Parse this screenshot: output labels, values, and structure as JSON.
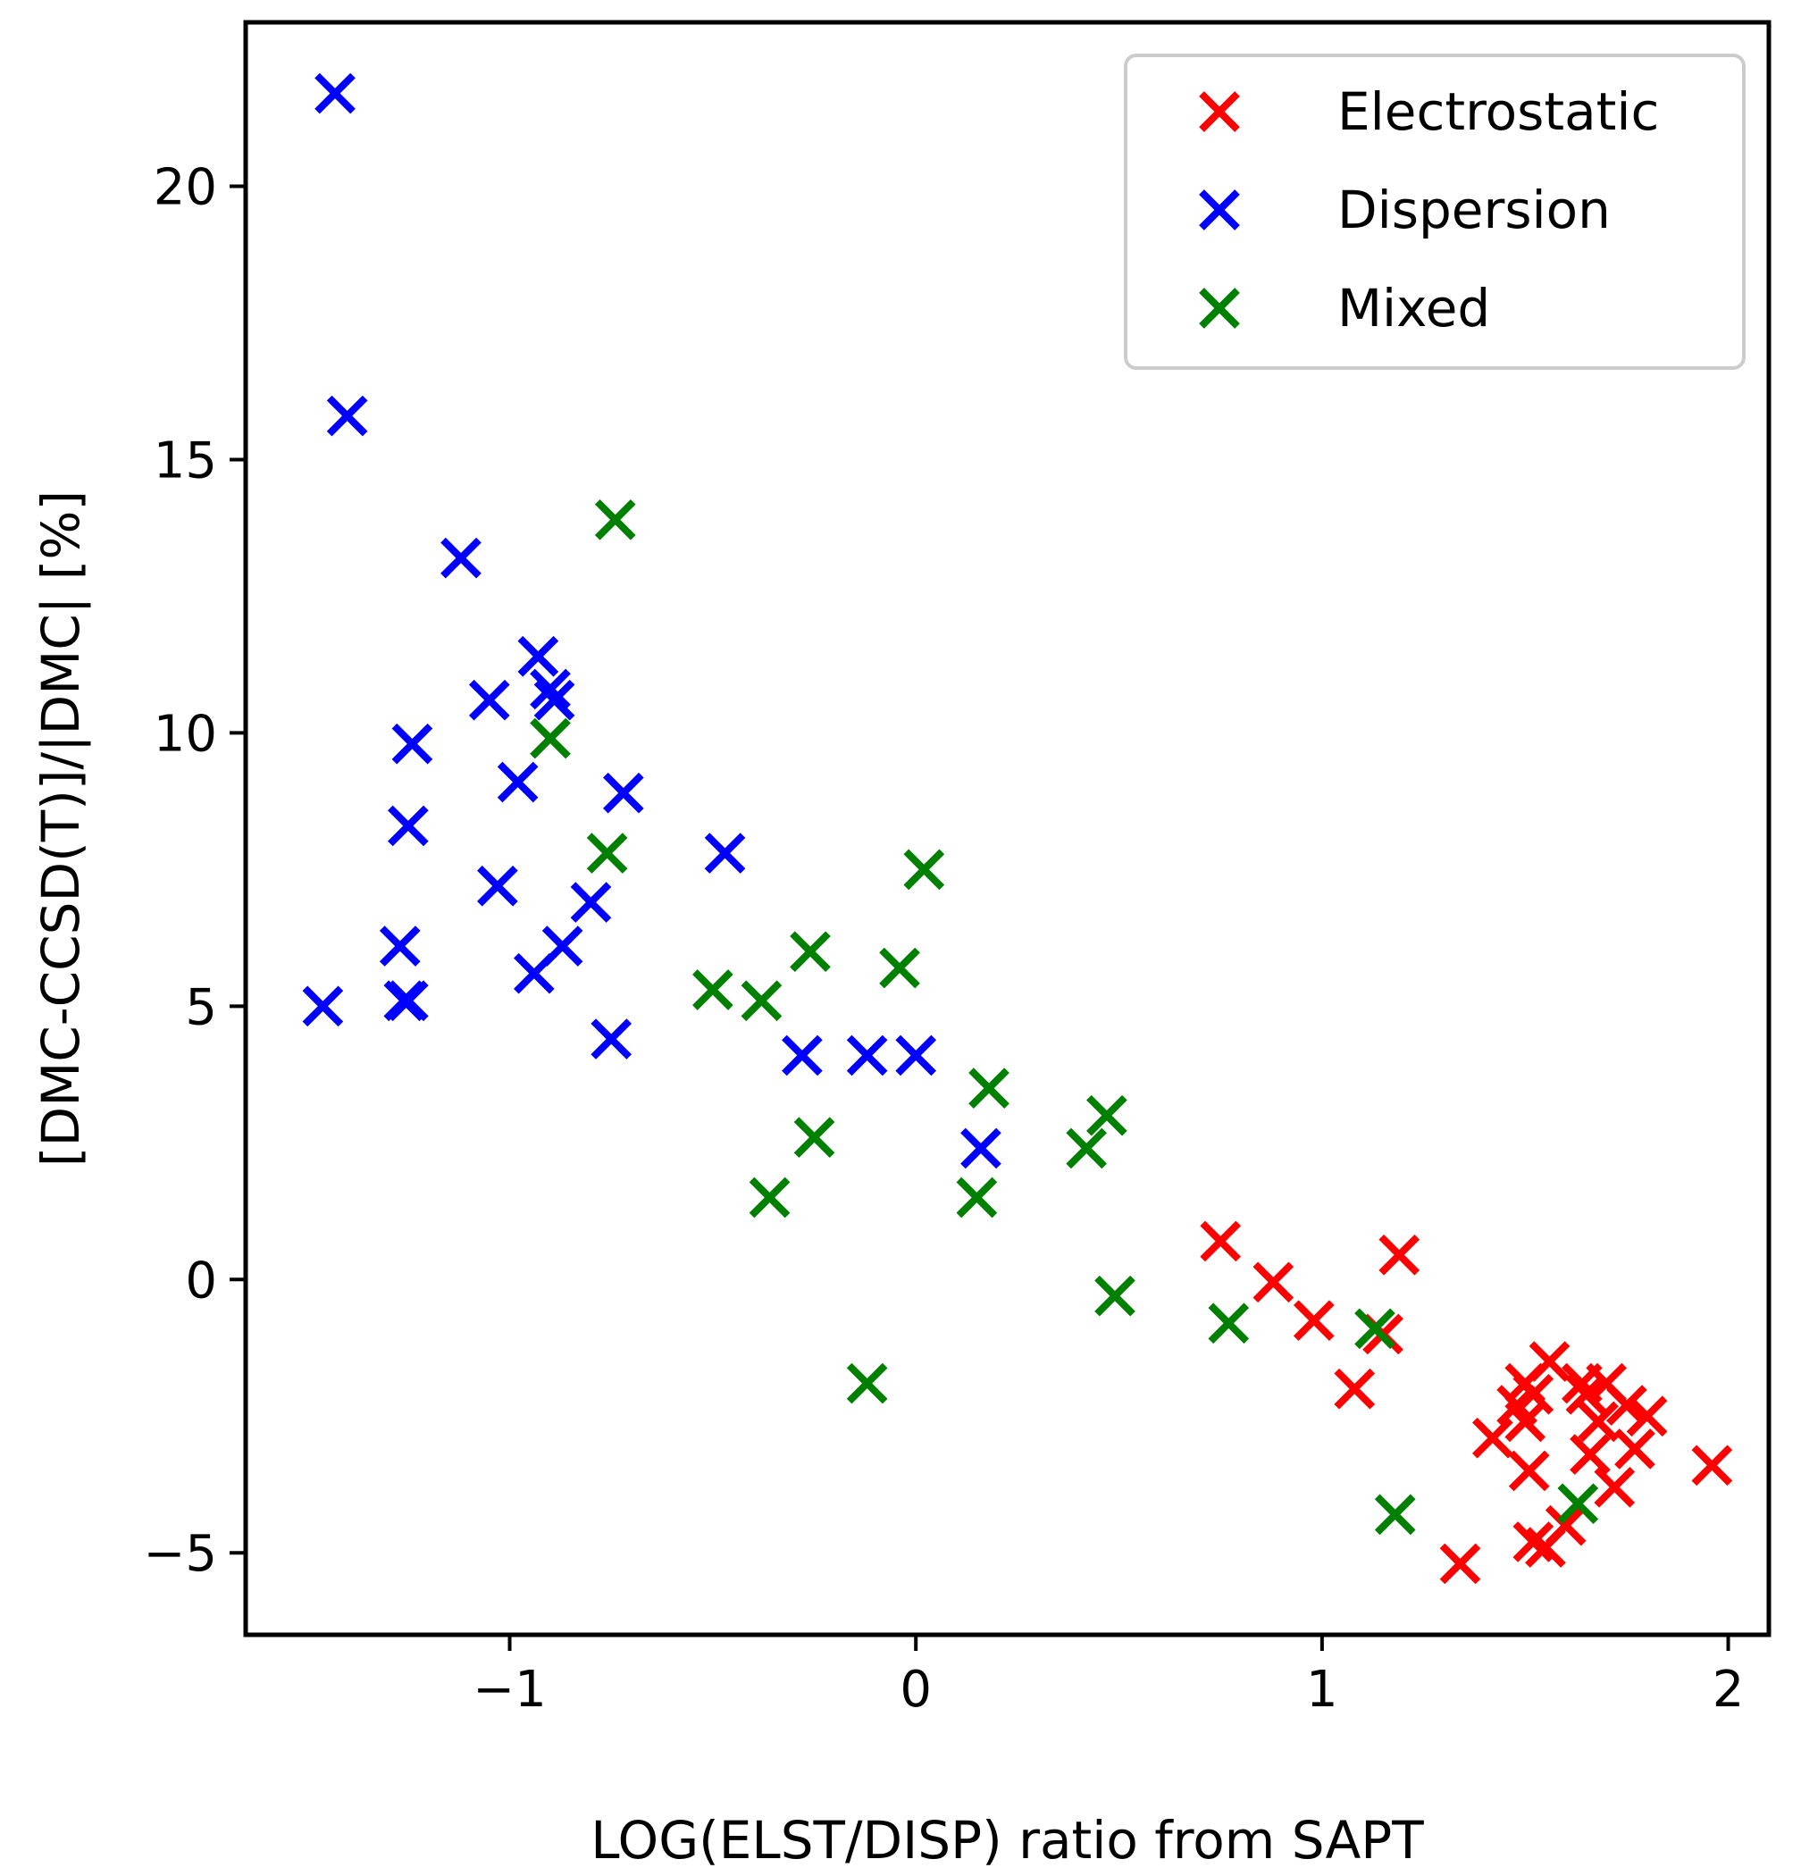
{
  "chart_data": {
    "type": "scatter",
    "title": "",
    "xlabel": "LOG(ELST/DISP) ratio from SAPT",
    "ylabel": "[DMC-CCSD(T)]/|DMC| [%]",
    "xlim": [
      -1.65,
      2.1
    ],
    "ylim": [
      -6.5,
      23.0
    ],
    "xticks": [
      -1,
      0,
      1,
      2
    ],
    "xtick_labels": [
      "−1",
      "0",
      "1",
      "2"
    ],
    "yticks": [
      -5,
      0,
      5,
      10,
      15,
      20
    ],
    "ytick_labels": [
      "−5",
      "0",
      "5",
      "10",
      "15",
      "20"
    ],
    "grid": false,
    "legend_position": "top-right",
    "marker": "x",
    "series": [
      {
        "name": "Electrostatic",
        "color": "#ff0000",
        "x": [
          0.75,
          0.88,
          0.98,
          1.08,
          1.15,
          1.19,
          1.34,
          1.42,
          1.48,
          1.5,
          1.51,
          1.52,
          1.55,
          1.56,
          1.6,
          1.64,
          1.65,
          1.66,
          1.68,
          1.7,
          1.72,
          1.75,
          1.77,
          1.8,
          1.96,
          1.5,
          1.52
        ],
        "y": [
          0.7,
          -0.05,
          -0.75,
          -2.0,
          -1.0,
          0.45,
          -5.2,
          -2.9,
          -2.3,
          -1.9,
          -3.5,
          -2.1,
          -4.9,
          -1.5,
          -4.5,
          -1.9,
          -2.1,
          -3.2,
          -2.6,
          -1.9,
          -3.8,
          -2.3,
          -3.1,
          -2.5,
          -3.4,
          -2.6,
          -4.8
        ]
      },
      {
        "name": "Dispersion",
        "color": "#0000ff",
        "x": [
          -1.43,
          -1.4,
          -1.46,
          -1.12,
          -1.24,
          -1.05,
          -0.93,
          -0.9,
          -1.25,
          -0.98,
          -1.25,
          -0.72,
          -1.03,
          -0.47,
          -0.8,
          -0.87,
          -0.94,
          -1.27,
          -1.26,
          -0.75,
          -0.28,
          -0.12,
          0.0,
          0.16,
          -0.89
        ],
        "y": [
          21.7,
          15.8,
          5.0,
          13.2,
          9.8,
          10.6,
          11.4,
          10.8,
          8.3,
          9.1,
          5.1,
          8.9,
          7.2,
          7.8,
          6.9,
          6.1,
          5.6,
          6.1,
          5.1,
          4.4,
          4.1,
          4.1,
          4.1,
          2.4,
          10.6
        ]
      },
      {
        "name": "Mixed",
        "color": "#008000",
        "x": [
          -0.74,
          -0.9,
          -0.76,
          -0.5,
          -0.38,
          -0.26,
          -0.04,
          0.02,
          -0.25,
          -0.36,
          -0.12,
          0.18,
          0.15,
          0.42,
          0.47,
          0.49,
          0.77,
          1.13,
          1.18,
          1.63
        ],
        "y": [
          13.9,
          9.9,
          7.8,
          5.3,
          5.1,
          6.0,
          5.7,
          7.5,
          2.6,
          1.5,
          -1.9,
          3.5,
          1.5,
          2.4,
          3.0,
          -0.3,
          -0.8,
          -0.9,
          -4.3,
          -4.1
        ]
      }
    ]
  }
}
